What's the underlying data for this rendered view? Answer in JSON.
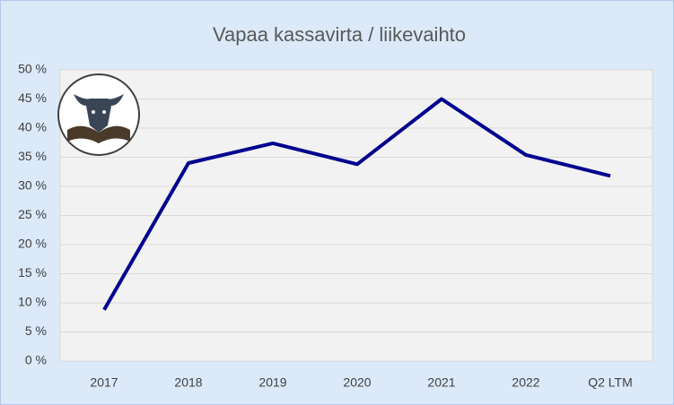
{
  "chart_data": {
    "type": "line",
    "title": "Vapaa kassavirta / liikevaihto",
    "categories": [
      "2017",
      "2018",
      "2019",
      "2020",
      "2021",
      "2022",
      "Q2 LTM"
    ],
    "series": [
      {
        "name": "Vapaa kassavirta / liikevaihto",
        "color": "#00008f",
        "values": [
          8.8,
          34,
          37.4,
          33.8,
          45,
          35.4,
          31.8
        ]
      }
    ],
    "ylim": [
      0,
      50
    ],
    "yticks": [
      {
        "value": 0,
        "label": "0 %"
      },
      {
        "value": 5,
        "label": "5 %"
      },
      {
        "value": 10,
        "label": "10 %"
      },
      {
        "value": 15,
        "label": "15 %"
      },
      {
        "value": 20,
        "label": "20 %"
      },
      {
        "value": 25,
        "label": "25 %"
      },
      {
        "value": 30,
        "label": "30 %"
      },
      {
        "value": 35,
        "label": "35 %"
      },
      {
        "value": 40,
        "label": "40 %"
      },
      {
        "value": 45,
        "label": "45 %"
      },
      {
        "value": 50,
        "label": "50 %"
      }
    ],
    "grid": true
  }
}
